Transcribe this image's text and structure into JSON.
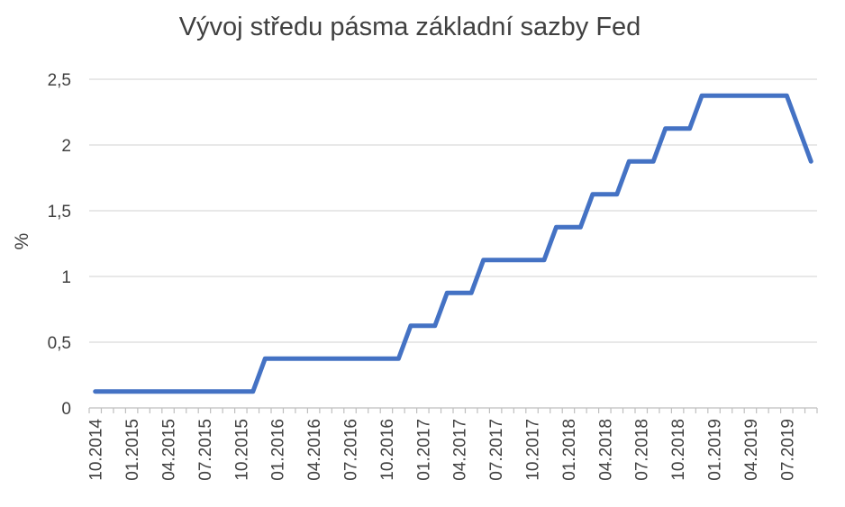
{
  "chart_data": {
    "type": "line",
    "title": "Vývoj středu pásma základní sazby Fed",
    "xlabel": "",
    "ylabel": "%",
    "ylim": [
      0,
      2.5
    ],
    "yticks": [
      "0",
      "0,5",
      "1",
      "1,5",
      "2",
      "2,5"
    ],
    "ytick_values": [
      0,
      0.5,
      1,
      1.5,
      2,
      2.5
    ],
    "grid": true,
    "line_color": "#4472C4",
    "xtick_labels": [
      "10.2014",
      "01.2015",
      "04.2015",
      "07.2015",
      "10.2015",
      "01.2016",
      "04.2016",
      "07.2016",
      "10.2016",
      "01.2017",
      "04.2017",
      "07.2017",
      "10.2017",
      "01.2018",
      "04.2018",
      "07.2018",
      "10.2018",
      "01.2019",
      "04.2019",
      "07.2019"
    ],
    "x": [
      "10.2014",
      "11.2014",
      "12.2014",
      "01.2015",
      "02.2015",
      "03.2015",
      "04.2015",
      "05.2015",
      "06.2015",
      "07.2015",
      "08.2015",
      "09.2015",
      "10.2015",
      "11.2015",
      "12.2015",
      "01.2016",
      "02.2016",
      "03.2016",
      "04.2016",
      "05.2016",
      "06.2016",
      "07.2016",
      "08.2016",
      "09.2016",
      "10.2016",
      "11.2016",
      "12.2016",
      "01.2017",
      "02.2017",
      "03.2017",
      "04.2017",
      "05.2017",
      "06.2017",
      "07.2017",
      "08.2017",
      "09.2017",
      "10.2017",
      "11.2017",
      "12.2017",
      "01.2018",
      "02.2018",
      "03.2018",
      "04.2018",
      "05.2018",
      "06.2018",
      "07.2018",
      "08.2018",
      "09.2018",
      "10.2018",
      "11.2018",
      "12.2018",
      "01.2019",
      "02.2019",
      "03.2019",
      "04.2019",
      "05.2019",
      "06.2019",
      "07.2019",
      "08.2019",
      "09.2019"
    ],
    "series": [
      {
        "values": [
          0.125,
          0.125,
          0.125,
          0.125,
          0.125,
          0.125,
          0.125,
          0.125,
          0.125,
          0.125,
          0.125,
          0.125,
          0.125,
          0.125,
          0.375,
          0.375,
          0.375,
          0.375,
          0.375,
          0.375,
          0.375,
          0.375,
          0.375,
          0.375,
          0.375,
          0.375,
          0.625,
          0.625,
          0.625,
          0.875,
          0.875,
          0.875,
          1.125,
          1.125,
          1.125,
          1.125,
          1.125,
          1.125,
          1.375,
          1.375,
          1.375,
          1.625,
          1.625,
          1.625,
          1.875,
          1.875,
          1.875,
          2.125,
          2.125,
          2.125,
          2.375,
          2.375,
          2.375,
          2.375,
          2.375,
          2.375,
          2.375,
          2.375,
          2.125,
          1.875
        ]
      }
    ]
  }
}
